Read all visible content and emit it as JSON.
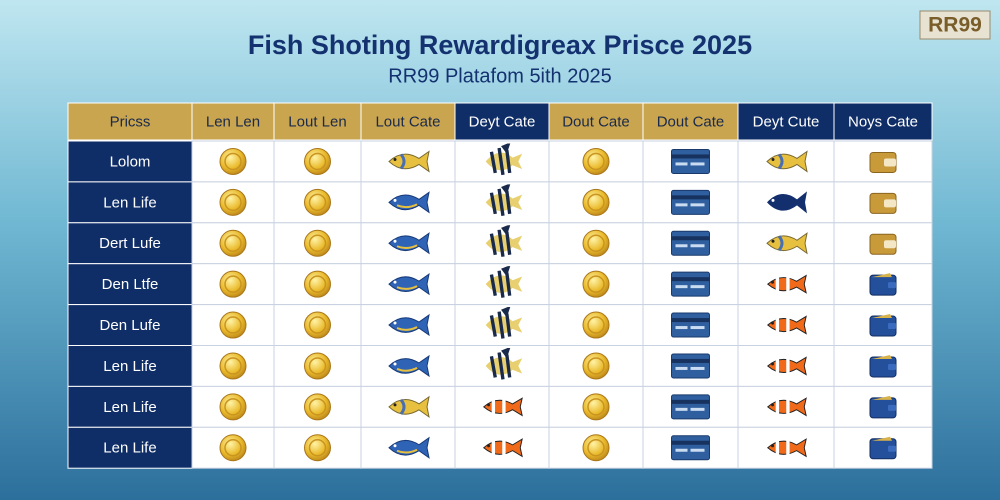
{
  "header": {
    "title": "Fish Shoting Rewardigreax Prisce 2025",
    "subtitle": "RR99 Platafom 5ith 2025",
    "logo": "RR99"
  },
  "table": {
    "columns": [
      "Pricss",
      "Len Len",
      "Lout Len",
      "Lout Cate",
      "Deyt Cate",
      "Dout Cate",
      "Dout Cate",
      "Deyt Cute",
      "Noys Cate"
    ],
    "rows": [
      "Lolom",
      "Len Life",
      "Dert Lufe",
      "Den Ltfe",
      "Den Lufe",
      "Len Life",
      "Len Life",
      "Len Life"
    ]
  }
}
